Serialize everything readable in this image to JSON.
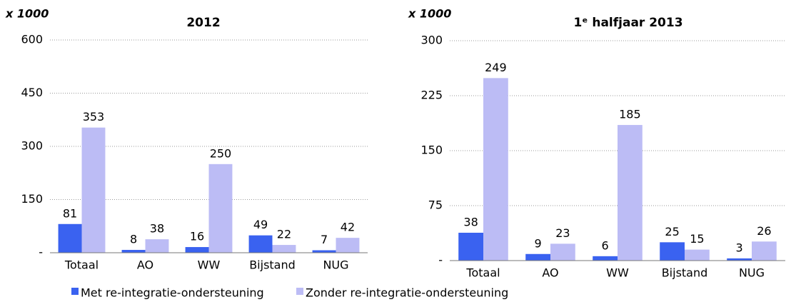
{
  "chart_data": [
    {
      "type": "bar",
      "title": "2012",
      "y_label": "x 1000",
      "categories": [
        "Totaal",
        "AO",
        "WW",
        "Bijstand",
        "NUG"
      ],
      "series": [
        {
          "name": "Met re-integratie-ondersteuning",
          "color": "#3a62f0",
          "values": [
            81,
            8,
            16,
            49,
            7
          ]
        },
        {
          "name": "Zonder re-integratie-ondersteuning",
          "color": "#bcbcf5",
          "values": [
            353,
            38,
            250,
            22,
            42
          ]
        }
      ],
      "ylim": [
        0,
        600
      ],
      "yticks": [
        {
          "value": 0,
          "label": "-"
        },
        150,
        300,
        450,
        600
      ],
      "grid": true
    },
    {
      "type": "bar",
      "title": "1ᵉ halfjaar 2013",
      "y_label": "x 1000",
      "categories": [
        "Totaal",
        "AO",
        "WW",
        "Bijstand",
        "NUG"
      ],
      "series": [
        {
          "color": "#3a62f0",
          "values": [
            38,
            9,
            6,
            25,
            3
          ]
        },
        {
          "color": "#bcbcf5",
          "values": [
            249,
            23,
            185,
            15,
            26
          ]
        }
      ],
      "ylim": [
        0,
        300
      ],
      "yticks": [
        {
          "value": 0,
          "label": "-"
        },
        75,
        150,
        225,
        300
      ],
      "grid": true
    }
  ]
}
